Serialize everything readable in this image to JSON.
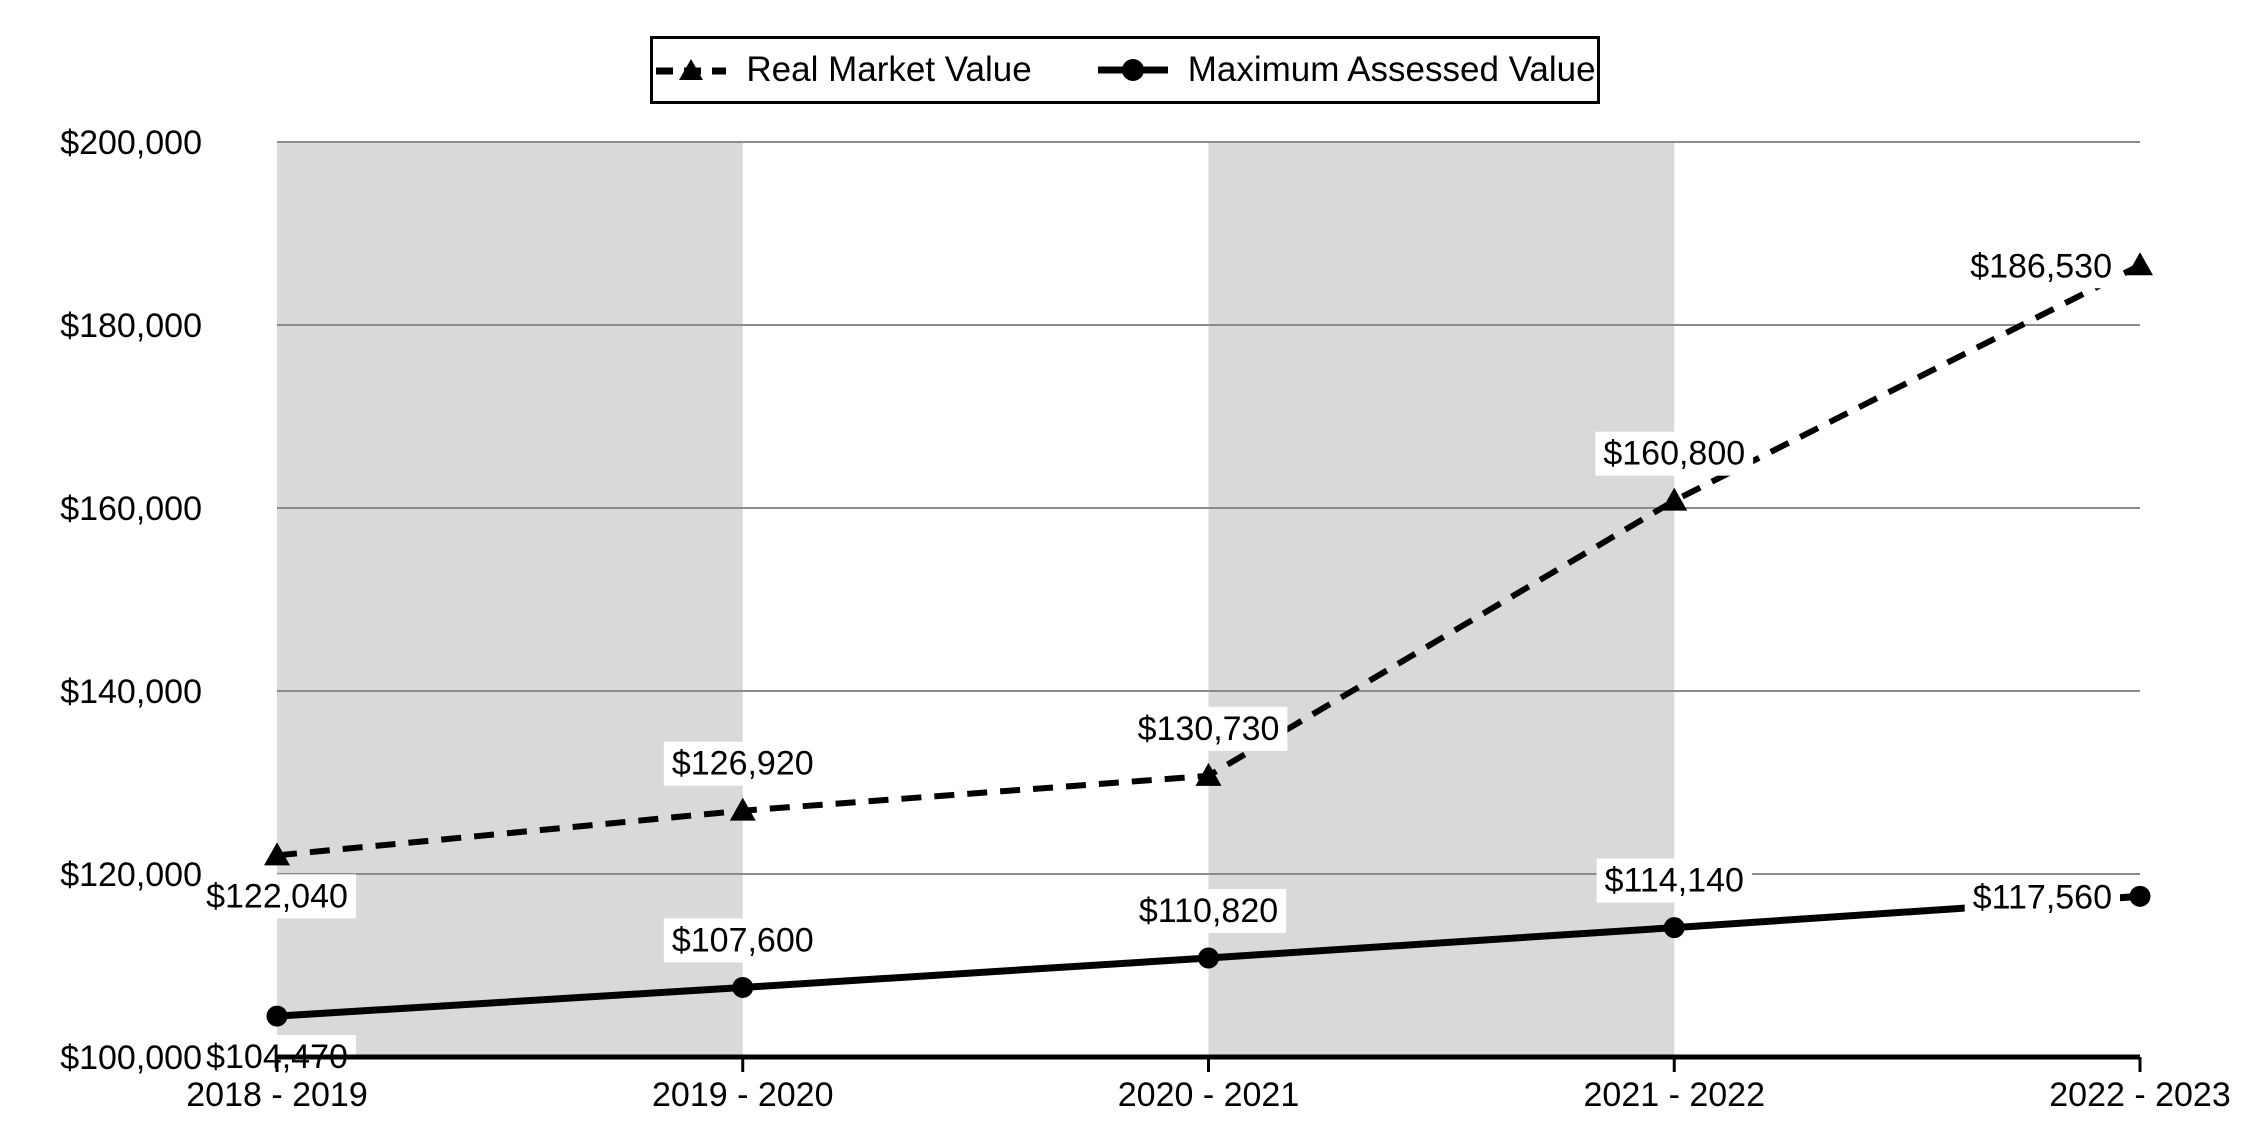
{
  "chart_data": {
    "type": "line",
    "categories": [
      "2018 - 2019",
      "2019 - 2020",
      "2020 - 2021",
      "2021 - 2022",
      "2022 - 2023"
    ],
    "series": [
      {
        "name": "Real Market Value",
        "line_style": "dashed",
        "marker": "triangle",
        "color": "#000000",
        "values": [
          122040,
          126920,
          130730,
          160800,
          186530
        ],
        "labels": [
          "$122,040",
          "$126,920",
          "$130,730",
          "$160,800",
          "$186,530"
        ],
        "label_placements": [
          "below",
          "above",
          "above",
          "above",
          "left"
        ]
      },
      {
        "name": "Maximum Assessed Value",
        "line_style": "solid",
        "marker": "circle",
        "color": "#000000",
        "values": [
          104470,
          107600,
          110820,
          114140,
          117560
        ],
        "labels": [
          "$104,470",
          "$107,600",
          "$110,820",
          "$114,140",
          "$117,560"
        ],
        "label_placements": [
          "below",
          "above",
          "above",
          "above",
          "left"
        ]
      }
    ],
    "ylim": [
      100000,
      200000
    ],
    "y_ticks": [
      {
        "value": 100000,
        "label": "$100,000"
      },
      {
        "value": 120000,
        "label": "$120,000"
      },
      {
        "value": 140000,
        "label": "$140,000"
      },
      {
        "value": 160000,
        "label": "$160,000"
      },
      {
        "value": 180000,
        "label": "$180,000"
      },
      {
        "value": 200000,
        "label": "$200,000"
      }
    ],
    "grid": true,
    "legend_position": "top",
    "shaded_bands": [
      [
        0,
        1
      ],
      [
        2,
        3
      ]
    ],
    "colors": {
      "band": "#d9d9d9",
      "gridline": "#8c8c8c",
      "axis": "#000000",
      "text": "#000000",
      "label_bg": "#ffffff"
    }
  }
}
